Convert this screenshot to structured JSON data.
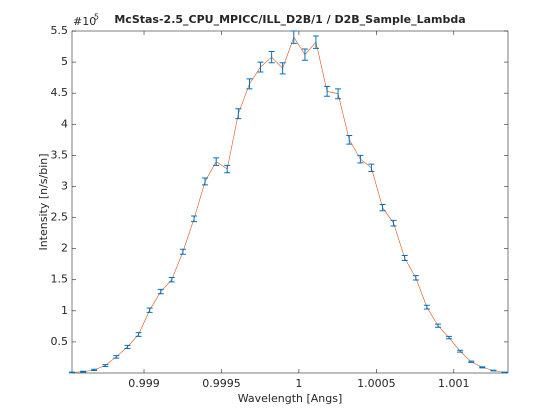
{
  "chart_data": {
    "type": "errorbar",
    "title": "McStas-2.5_CPU_MPICC/ILL_D2B/1 / D2B_Sample_Lambda",
    "xlabel": "Wavelength [Angs]",
    "ylabel": "Intensity [n/s/bin]",
    "y_multiplier": {
      "base": "#10",
      "exponent": "5"
    },
    "x": [
      0.998535,
      0.998607,
      0.998678,
      0.99875,
      0.998821,
      0.998893,
      0.998965,
      0.999036,
      0.999108,
      0.999179,
      0.999251,
      0.999323,
      0.999394,
      0.999466,
      0.999537,
      0.999609,
      0.999681,
      0.999752,
      0.999824,
      0.999895,
      0.999967,
      1.000039,
      1.00011,
      1.000182,
      1.000253,
      1.000325,
      1.000397,
      1.000468,
      1.00054,
      1.000611,
      1.000683,
      1.000755,
      1.000826,
      1.000898,
      1.000969,
      1.001041,
      1.001113,
      1.001184,
      1.001256,
      1.001327
    ],
    "series": [
      {
        "color": "#d95319",
        "error_color": "#0072bd",
        "values": [
          0.01,
          0.02,
          0.05,
          0.12,
          0.26,
          0.42,
          0.62,
          1.01,
          1.31,
          1.5,
          1.95,
          2.48,
          3.08,
          3.4,
          3.28,
          4.17,
          4.65,
          4.92,
          5.08,
          4.9,
          5.4,
          5.12,
          5.32,
          4.53,
          4.49,
          3.75,
          3.44,
          3.3,
          2.66,
          2.41,
          1.85,
          1.53,
          1.06,
          0.76,
          0.57,
          0.35,
          0.18,
          0.09,
          0.04,
          0.01
        ],
        "errors": [
          0.005,
          0.008,
          0.01,
          0.015,
          0.02,
          0.025,
          0.03,
          0.035,
          0.035,
          0.035,
          0.04,
          0.045,
          0.055,
          0.06,
          0.06,
          0.08,
          0.08,
          0.08,
          0.09,
          0.09,
          0.1,
          0.09,
          0.1,
          0.08,
          0.08,
          0.07,
          0.06,
          0.06,
          0.05,
          0.045,
          0.04,
          0.035,
          0.03,
          0.025,
          0.02,
          0.015,
          0.01,
          0.008,
          0.005,
          0.005
        ]
      }
    ],
    "xlim": [
      0.998535,
      1.00135
    ],
    "ylim": [
      0,
      5.5
    ],
    "xticks": [
      0.999,
      0.9995,
      1,
      1.0005,
      1.001
    ],
    "yticks": [
      0.5,
      1,
      1.5,
      2,
      2.5,
      3,
      3.5,
      4,
      4.5,
      5,
      5.5
    ]
  }
}
